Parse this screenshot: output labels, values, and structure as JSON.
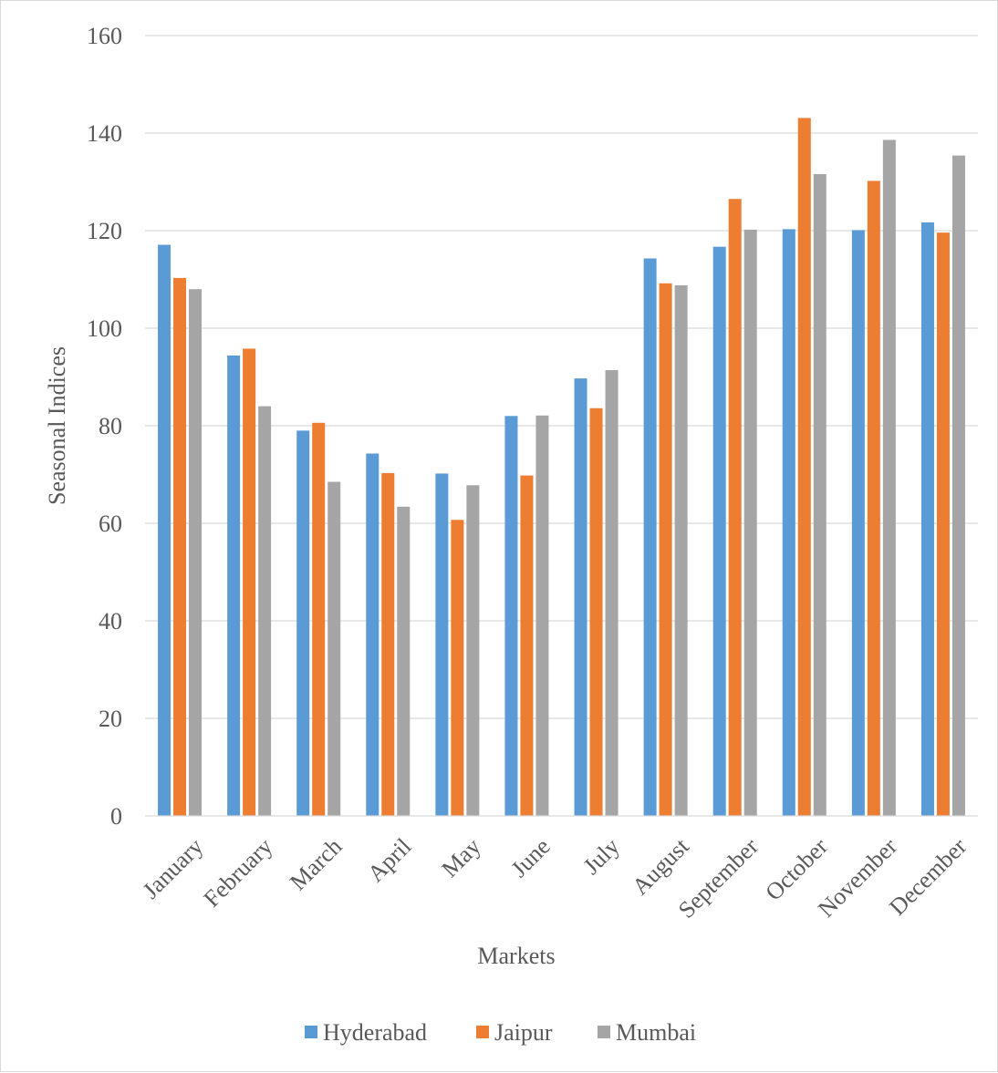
{
  "chart_data": {
    "type": "bar",
    "title": "",
    "xlabel": "Markets",
    "ylabel": "Seasonal Indices",
    "ylim": [
      0,
      160
    ],
    "yticks": [
      0,
      20,
      40,
      60,
      80,
      100,
      120,
      140,
      160
    ],
    "grid": true,
    "legend_position": "bottom",
    "categories": [
      "January",
      "February",
      "March",
      "April",
      "May",
      "June",
      "July",
      "August",
      "September",
      "October",
      "November",
      "December"
    ],
    "series": [
      {
        "name": "Hyderabad",
        "color": "#5b9bd5",
        "values": [
          117.1,
          94.4,
          79.0,
          74.3,
          70.2,
          82.0,
          89.7,
          114.3,
          116.7,
          120.3,
          120.1,
          121.7
        ]
      },
      {
        "name": "Jaipur",
        "color": "#ed7d31",
        "values": [
          110.3,
          95.8,
          80.6,
          70.3,
          60.7,
          69.8,
          83.6,
          109.2,
          126.5,
          143.1,
          130.2,
          119.6
        ]
      },
      {
        "name": "Mumbai",
        "color": "#a5a5a5",
        "values": [
          108.0,
          84.0,
          68.5,
          63.4,
          67.8,
          82.1,
          91.4,
          108.8,
          120.2,
          131.6,
          138.6,
          135.4
        ]
      }
    ]
  }
}
